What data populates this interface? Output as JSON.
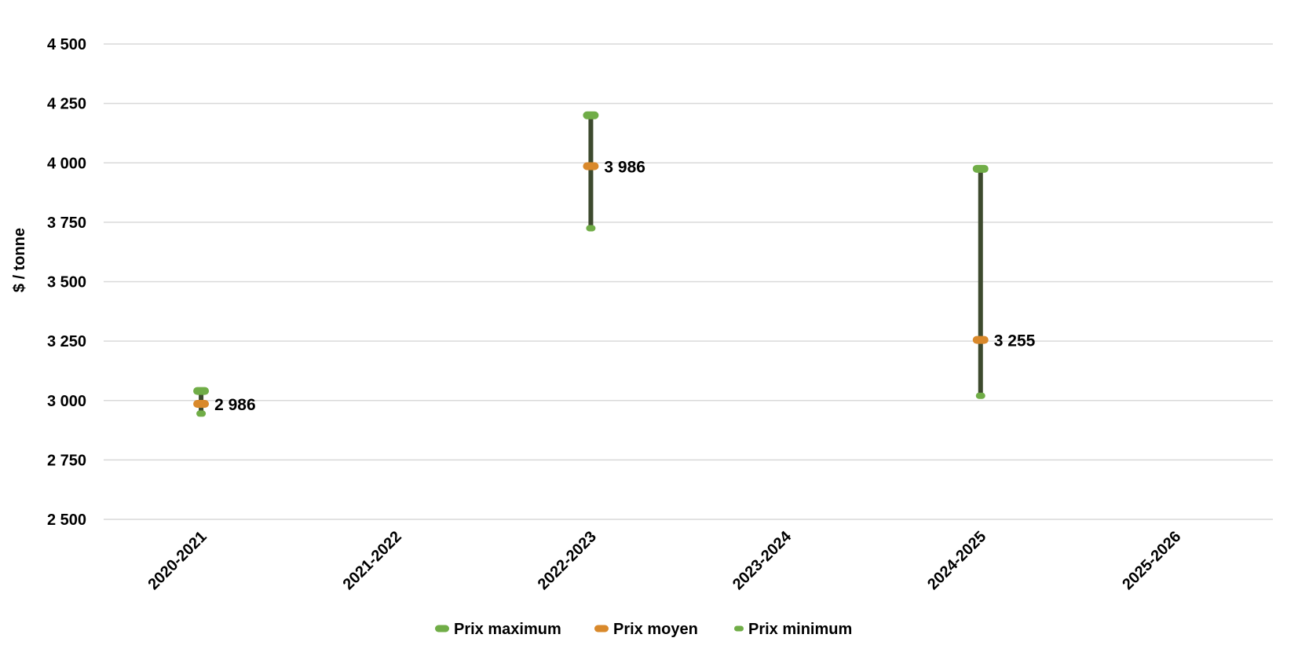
{
  "chart_data": {
    "type": "line",
    "subtype": "high-low-average",
    "title": "",
    "xlabel": "",
    "ylabel": "$ / tonne",
    "ylim": [
      2500,
      4500
    ],
    "yticks": [
      2500,
      2750,
      3000,
      3250,
      3500,
      3750,
      4000,
      4250,
      4500
    ],
    "ytick_labels": [
      "2 500",
      "2 750",
      "3 000",
      "3 250",
      "3 500",
      "3 750",
      "4 000",
      "4 250",
      "4 500"
    ],
    "categories": [
      "2020-2021",
      "2021-2022",
      "2022-2023",
      "2023-2024",
      "2024-2025",
      "2025-2026"
    ],
    "series": [
      {
        "name": "Prix maximum",
        "color": "#70ad47",
        "values": [
          3040,
          null,
          4200,
          null,
          3975,
          null
        ]
      },
      {
        "name": "Prix moyen",
        "color": "#d9892b",
        "values": [
          2986,
          null,
          3986,
          null,
          3255,
          null
        ]
      },
      {
        "name": "Prix minimum",
        "color": "#70ad47",
        "values": [
          2945,
          null,
          3725,
          null,
          3020,
          null
        ]
      }
    ],
    "data_labels": [
      "2 986",
      null,
      "3 986",
      null,
      "3 255",
      null
    ],
    "range_line_color": "#3d4a2e",
    "grid": true,
    "legend_position": "bottom"
  }
}
